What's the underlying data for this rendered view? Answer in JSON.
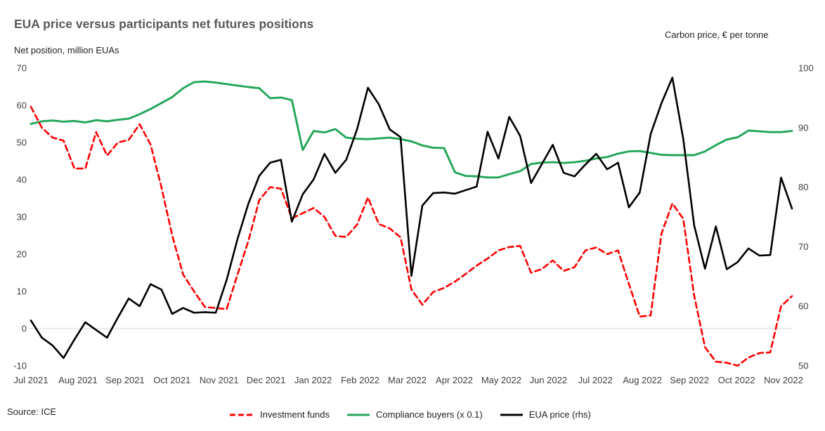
{
  "source_note": "Source: ICE",
  "chart_data": {
    "type": "line",
    "title": "EUA price versus participants net futures positions",
    "ylabel_left": "Net position, million EUAs",
    "ylabel_right": "Carbon price, € per tonne",
    "x_tick_labels": [
      "Jul 2021",
      "Aug 2021",
      "Sep 2021",
      "Oct 2021",
      "Nov 2021",
      "Dec 2021",
      "Jan 2022",
      "Feb 2022",
      "Mar 2022",
      "Apr 2022",
      "May 2022",
      "Jun 2022",
      "Jul 2022",
      "Aug 2022",
      "Sep 2022",
      "Oct 2022",
      "Nov 2022"
    ],
    "x_frequency": "weekly",
    "left_axis": {
      "min": -10,
      "max": 70,
      "ticks": [
        70,
        60,
        50,
        40,
        30,
        20,
        10,
        0,
        -10
      ]
    },
    "right_axis": {
      "min": 50,
      "max": 100,
      "ticks": [
        100,
        90,
        80,
        70,
        60,
        50
      ]
    },
    "grid": "zero line only",
    "zero_gridline_color": "#D9D9D9",
    "tick_label_color": "#404040",
    "legend_position": "bottom center",
    "series": [
      {
        "name": "Investment funds",
        "axis": "left",
        "color": "#FF0000",
        "style": "dashed",
        "values": [
          59.6,
          54.0,
          51.3,
          50.5,
          43.0,
          43.0,
          52.8,
          46.5,
          50.0,
          50.7,
          54.9,
          49.5,
          38.0,
          25.0,
          14.5,
          10.0,
          5.8,
          5.5,
          5.2,
          14.5,
          23.5,
          34.5,
          38.0,
          37.6,
          29.6,
          31.0,
          32.4,
          30.0,
          24.9,
          24.6,
          27.9,
          35.2,
          28.1,
          26.9,
          24.5,
          10.5,
          6.4,
          9.8,
          10.9,
          12.6,
          14.7,
          16.9,
          18.8,
          21.0,
          21.9,
          22.2,
          15.0,
          16.0,
          18.3,
          15.5,
          16.5,
          21.0,
          21.8,
          20.0,
          21.0,
          12.0,
          3.2,
          3.5,
          25.5,
          33.6,
          29.5,
          8.9,
          -5.0,
          -8.9,
          -9.2,
          -10.0,
          -7.8,
          -6.6,
          -6.4,
          6.0,
          8.7
        ]
      },
      {
        "name": "Compliance buyers (x 0.1)",
        "axis": "left",
        "color": "#21A657",
        "style": "solid",
        "values": [
          55.0,
          55.7,
          55.9,
          55.6,
          55.8,
          55.4,
          56.0,
          55.7,
          56.1,
          56.4,
          57.6,
          59.0,
          60.6,
          62.2,
          64.6,
          66.2,
          66.4,
          66.1,
          65.7,
          65.3,
          64.9,
          64.6,
          61.9,
          62.1,
          61.4,
          48.0,
          53.1,
          52.7,
          53.6,
          51.3,
          51.0,
          50.9,
          51.1,
          51.3,
          50.9,
          50.3,
          49.2,
          48.6,
          48.5,
          42.0,
          41.0,
          40.9,
          40.6,
          40.6,
          41.5,
          42.3,
          44.2,
          44.6,
          44.7,
          44.5,
          44.7,
          45.1,
          45.7,
          46.1,
          47.0,
          47.6,
          47.7,
          47.2,
          46.7,
          46.6,
          46.6,
          46.6,
          47.6,
          49.3,
          50.8,
          51.4,
          53.2,
          53.0,
          52.8,
          52.8,
          53.1
        ]
      },
      {
        "name": "EUA price (rhs)",
        "axis": "right",
        "color": "#000000",
        "style": "solid",
        "values": [
          57.6,
          54.7,
          53.4,
          51.3,
          54.4,
          57.3,
          56.0,
          54.7,
          58.1,
          61.3,
          60.0,
          63.7,
          62.8,
          58.7,
          59.7,
          58.9,
          59.0,
          58.9,
          64.4,
          71.3,
          77.2,
          81.9,
          84.1,
          84.6,
          74.2,
          78.8,
          81.3,
          85.6,
          82.4,
          84.6,
          89.7,
          96.7,
          93.9,
          89.7,
          88.4,
          65.1,
          76.9,
          79.0,
          79.1,
          78.9,
          79.5,
          80.1,
          89.3,
          84.8,
          91.8,
          88.6,
          80.7,
          83.9,
          87.1,
          82.4,
          81.8,
          83.8,
          85.6,
          83.0,
          84.1,
          76.6,
          79.1,
          88.9,
          94.1,
          98.4,
          88.1,
          73.6,
          66.3,
          73.4,
          66.2,
          67.4,
          69.7,
          68.5,
          68.6,
          81.6,
          76.4
        ]
      }
    ]
  },
  "legend": [
    {
      "label": "Investment funds"
    },
    {
      "label": "Compliance buyers (x 0.1)"
    },
    {
      "label": "EUA price (rhs)"
    }
  ]
}
